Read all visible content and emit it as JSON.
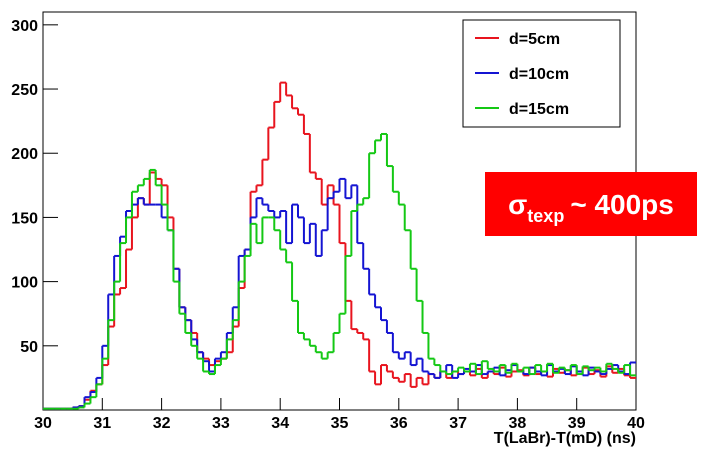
{
  "chart_data": {
    "type": "histogram",
    "xlabel": "T(LaBr)-T(mD) (ns)",
    "xlim": [
      30,
      40
    ],
    "ylim": [
      0,
      310
    ],
    "xticks": [
      30,
      31,
      32,
      33,
      34,
      35,
      36,
      37,
      38,
      39,
      40
    ],
    "yticks": [
      50,
      100,
      150,
      200,
      250,
      300
    ],
    "legend": "upper right",
    "bins": [
      30,
      30.1,
      30.2,
      30.3,
      30.4,
      30.5,
      30.6,
      30.7,
      30.8,
      30.9,
      31,
      31.1,
      31.2,
      31.3,
      31.4,
      31.5,
      31.6,
      31.7,
      31.8,
      31.9,
      32,
      32.1,
      32.2,
      32.3,
      32.4,
      32.5,
      32.6,
      32.7,
      32.8,
      32.9,
      33,
      33.1,
      33.2,
      33.3,
      33.4,
      33.5,
      33.6,
      33.7,
      33.8,
      33.9,
      34,
      34.1,
      34.2,
      34.3,
      34.4,
      34.5,
      34.6,
      34.7,
      34.8,
      34.9,
      35,
      35.1,
      35.2,
      35.3,
      35.4,
      35.5,
      35.6,
      35.7,
      35.8,
      35.9,
      36,
      36.1,
      36.2,
      36.3,
      36.4,
      36.5,
      36.6,
      36.7,
      36.8,
      36.9,
      37,
      37.1,
      37.2,
      37.3,
      37.4,
      37.5,
      37.6,
      37.7,
      37.8,
      37.9,
      38,
      38.1,
      38.2,
      38.3,
      38.4,
      38.5,
      38.6,
      38.7,
      38.8,
      38.9,
      39,
      39.1,
      39.2,
      39.3,
      39.4,
      39.5,
      39.6,
      39.7,
      39.8,
      39.9,
      40
    ],
    "series": [
      {
        "name": "d=5cm",
        "color": "#e8141e",
        "values": [
          1,
          1,
          1,
          1,
          1,
          2,
          3,
          8,
          15,
          20,
          35,
          65,
          90,
          95,
          125,
          150,
          165,
          160,
          185,
          180,
          175,
          150,
          110,
          80,
          70,
          60,
          45,
          40,
          35,
          38,
          40,
          45,
          65,
          95,
          125,
          170,
          175,
          195,
          220,
          240,
          255,
          245,
          235,
          230,
          215,
          185,
          180,
          160,
          175,
          160,
          130,
          85,
          63,
          60,
          55,
          30,
          20,
          35,
          30,
          25,
          22,
          28,
          18,
          25,
          20,
          28,
          25,
          30,
          25,
          30,
          28,
          30,
          27,
          32,
          25,
          30,
          28,
          33,
          26,
          30,
          31,
          27,
          33,
          28,
          30,
          26,
          32,
          29,
          31,
          27,
          30,
          33,
          28,
          31,
          26,
          34,
          29,
          32,
          27,
          25
        ]
      },
      {
        "name": "d=10cm",
        "color": "#1414d2",
        "values": [
          1,
          1,
          1,
          1,
          1,
          2,
          3,
          10,
          14,
          25,
          50,
          90,
          120,
          135,
          155,
          160,
          165,
          160,
          160,
          160,
          150,
          140,
          110,
          80,
          70,
          55,
          45,
          38,
          30,
          40,
          45,
          60,
          80,
          120,
          125,
          150,
          165,
          160,
          155,
          150,
          155,
          130,
          160,
          150,
          130,
          145,
          120,
          140,
          165,
          170,
          180,
          165,
          175,
          130,
          110,
          90,
          80,
          70,
          60,
          45,
          40,
          45,
          35,
          40,
          30,
          28,
          25,
          30,
          35,
          25,
          28,
          32,
          30,
          35,
          28,
          30,
          33,
          27,
          31,
          35,
          30,
          28,
          33,
          30,
          27,
          35,
          30,
          32,
          28,
          34,
          30,
          27,
          33,
          30,
          28,
          32,
          35,
          30,
          28,
          37
        ]
      },
      {
        "name": "d=15cm",
        "color": "#14c814",
        "values": [
          1,
          1,
          1,
          1,
          1,
          1,
          2,
          5,
          10,
          20,
          40,
          70,
          100,
          130,
          150,
          170,
          175,
          180,
          187,
          175,
          160,
          140,
          100,
          75,
          60,
          50,
          40,
          30,
          28,
          35,
          40,
          55,
          70,
          100,
          120,
          145,
          130,
          150,
          150,
          140,
          125,
          115,
          85,
          60,
          55,
          50,
          45,
          40,
          45,
          60,
          75,
          120,
          155,
          160,
          165,
          200,
          210,
          215,
          190,
          170,
          160,
          140,
          110,
          85,
          60,
          40,
          35,
          30,
          28,
          30,
          33,
          30,
          36,
          28,
          38,
          32,
          30,
          35,
          29,
          36,
          30,
          33,
          28,
          35,
          30,
          36,
          29,
          33,
          31,
          35,
          28,
          34,
          31,
          33,
          30,
          36,
          32,
          29,
          35,
          27
        ]
      }
    ],
    "annotation": {
      "symbol": "σ",
      "subscript": "texp",
      "text": "~ 400ps",
      "color": "#ff0000"
    }
  }
}
